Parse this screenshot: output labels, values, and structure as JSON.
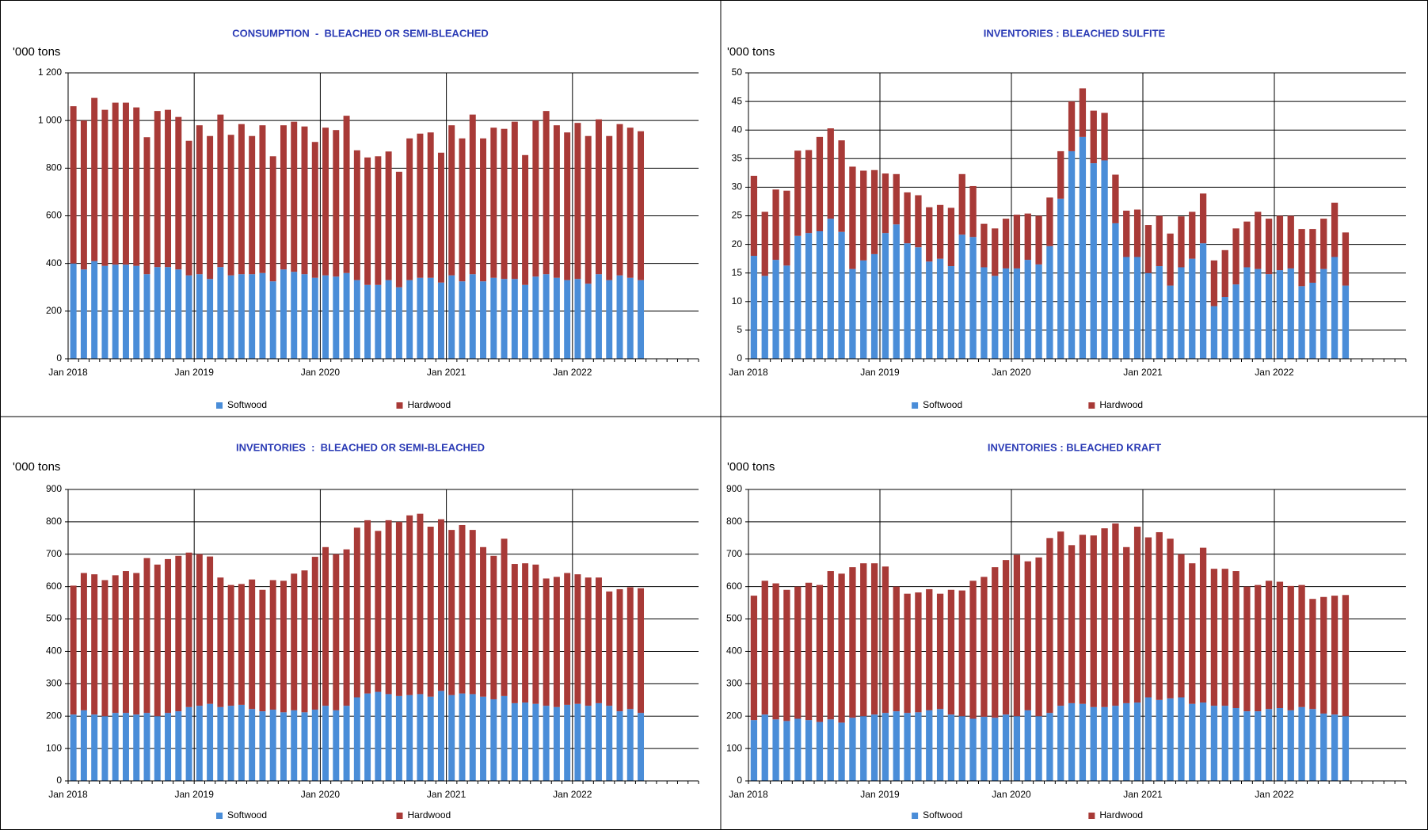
{
  "chart_data": [
    {
      "type": "bar",
      "stacked": true,
      "title": "CONSUMPTION  -  BLEACHED OR SEMI-BLEACHED",
      "y_label": "'000 tons",
      "categories": [
        "Jan 2018",
        null,
        null,
        null,
        null,
        null,
        null,
        null,
        null,
        null,
        null,
        null,
        "Jan 2019",
        null,
        null,
        null,
        null,
        null,
        null,
        null,
        null,
        null,
        null,
        null,
        "Jan 2020",
        null,
        null,
        null,
        null,
        null,
        null,
        null,
        null,
        null,
        null,
        null,
        "Jan 2021",
        null,
        null,
        null,
        null,
        null,
        null,
        null,
        null,
        null,
        null,
        null,
        "Jan 2022",
        null,
        null,
        null,
        null,
        null,
        null,
        null,
        null,
        null,
        null,
        null
      ],
      "series": [
        {
          "name": "Softwood",
          "color": "#4a8dd8",
          "values": [
            400,
            375,
            410,
            390,
            395,
            395,
            390,
            355,
            385,
            385,
            375,
            350,
            355,
            335,
            385,
            350,
            355,
            355,
            360,
            325,
            375,
            365,
            355,
            340,
            350,
            345,
            360,
            330,
            310,
            310,
            330,
            300,
            330,
            340,
            340,
            320,
            350,
            325,
            355,
            325,
            340,
            335,
            335,
            310,
            345,
            355,
            340,
            330,
            335,
            315,
            355,
            330,
            350,
            340,
            330,
            null,
            null,
            null,
            null,
            null
          ]
        },
        {
          "name": "Hardwood",
          "color": "#a83a37",
          "values": [
            660,
            625,
            685,
            655,
            680,
            680,
            665,
            575,
            655,
            660,
            640,
            565,
            625,
            600,
            640,
            590,
            630,
            580,
            620,
            525,
            605,
            630,
            620,
            570,
            620,
            615,
            660,
            545,
            535,
            540,
            540,
            485,
            595,
            605,
            610,
            545,
            630,
            600,
            670,
            600,
            630,
            630,
            660,
            545,
            655,
            685,
            640,
            620,
            655,
            620,
            650,
            605,
            635,
            630,
            625,
            null,
            null,
            null,
            null,
            null
          ]
        }
      ],
      "ylim": [
        0,
        1200
      ],
      "yticks": [
        0,
        200,
        400,
        600,
        800,
        {
          "value": 1000,
          "label": "1 000"
        },
        {
          "value": 1200,
          "label": "1 200"
        }
      ],
      "grid": true,
      "legend": "bottom"
    },
    {
      "type": "bar",
      "stacked": true,
      "title": "INVENTORIES : BLEACHED SULFITE",
      "y_label": "'000 tons",
      "categories": [
        "Jan 2018",
        null,
        null,
        null,
        null,
        null,
        null,
        null,
        null,
        null,
        null,
        null,
        "Jan 2019",
        null,
        null,
        null,
        null,
        null,
        null,
        null,
        null,
        null,
        null,
        null,
        "Jan 2020",
        null,
        null,
        null,
        null,
        null,
        null,
        null,
        null,
        null,
        null,
        null,
        "Jan 2021",
        null,
        null,
        null,
        null,
        null,
        null,
        null,
        null,
        null,
        null,
        null,
        "Jan 2022",
        null,
        null,
        null,
        null,
        null,
        null,
        null,
        null,
        null,
        null,
        null
      ],
      "series": [
        {
          "name": "Softwood",
          "color": "#4a8dd8",
          "values": [
            18,
            14.5,
            17.3,
            16.3,
            21.5,
            22,
            22.3,
            24.5,
            22.2,
            15.7,
            17.2,
            18.3,
            22,
            23.5,
            20.2,
            19.5,
            17,
            17.5,
            16.2,
            21.7,
            21.3,
            16,
            14.5,
            15.8,
            15.8,
            17.3,
            16.5,
            19.7,
            28,
            36.3,
            38.8,
            34.2,
            34.7,
            23.7,
            17.8,
            17.8,
            15,
            16.2,
            12.8,
            16,
            17.5,
            20.2,
            9.2,
            10.8,
            13,
            16,
            15.7,
            14.8,
            15.5,
            15.8,
            12.7,
            13.3,
            15.7,
            17.8,
            12.8,
            null,
            null,
            null,
            null,
            null
          ]
        },
        {
          "name": "Hardwood",
          "color": "#a83a37",
          "values": [
            14,
            11.2,
            12.3,
            13.1,
            14.9,
            14.5,
            16.5,
            15.8,
            16,
            17.9,
            15.7,
            14.7,
            10.4,
            8.8,
            8.9,
            9.1,
            9.5,
            9.4,
            10.2,
            10.6,
            8.9,
            7.6,
            8.3,
            8.7,
            9.4,
            8.1,
            8.5,
            8.5,
            8.3,
            8.7,
            8.5,
            9.2,
            8.3,
            8.5,
            8.1,
            8.3,
            8.4,
            8.8,
            9.1,
            8.9,
            8.2,
            8.7,
            8,
            8.2,
            9.8,
            8,
            10,
            9.7,
            9.5,
            9.2,
            10,
            9.4,
            8.8,
            9.5,
            9.3,
            null,
            null,
            null,
            null,
            null
          ]
        }
      ],
      "ylim": [
        0,
        50
      ],
      "yticks": [
        0,
        5,
        10,
        15,
        20,
        25,
        30,
        35,
        40,
        45,
        50
      ],
      "grid": true,
      "legend": "bottom"
    },
    {
      "type": "bar",
      "stacked": true,
      "title": "INVENTORIES  :  BLEACHED OR SEMI-BLEACHED",
      "y_label": "'000 tons",
      "categories": [
        "Jan 2018",
        null,
        null,
        null,
        null,
        null,
        null,
        null,
        null,
        null,
        null,
        null,
        "Jan 2019",
        null,
        null,
        null,
        null,
        null,
        null,
        null,
        null,
        null,
        null,
        null,
        "Jan 2020",
        null,
        null,
        null,
        null,
        null,
        null,
        null,
        null,
        null,
        null,
        null,
        "Jan 2021",
        null,
        null,
        null,
        null,
        null,
        null,
        null,
        null,
        null,
        null,
        null,
        "Jan 2022",
        null,
        null,
        null,
        null,
        null,
        null,
        null,
        null,
        null,
        null,
        null
      ],
      "series": [
        {
          "name": "Softwood",
          "color": "#4a8dd8",
          "values": [
            205,
            218,
            205,
            200,
            210,
            210,
            205,
            210,
            200,
            210,
            215,
            228,
            232,
            238,
            228,
            232,
            235,
            222,
            215,
            220,
            212,
            218,
            212,
            220,
            232,
            218,
            232,
            258,
            270,
            275,
            268,
            262,
            265,
            268,
            260,
            278,
            265,
            270,
            268,
            260,
            252,
            262,
            240,
            242,
            238,
            232,
            228,
            235,
            238,
            232,
            240,
            232,
            215,
            222,
            210,
            null,
            null,
            null,
            null,
            null
          ]
        },
        {
          "name": "Hardwood",
          "color": "#a83a37",
          "values": [
            398,
            424,
            433,
            420,
            425,
            438,
            437,
            478,
            468,
            475,
            480,
            477,
            468,
            455,
            400,
            373,
            373,
            400,
            375,
            400,
            406,
            422,
            438,
            472,
            490,
            482,
            483,
            524,
            535,
            497,
            537,
            538,
            555,
            557,
            525,
            530,
            510,
            520,
            507,
            462,
            443,
            486,
            430,
            430,
            430,
            393,
            402,
            407,
            400,
            396,
            388,
            353,
            377,
            376,
            385,
            null,
            null,
            null,
            null,
            null
          ]
        }
      ],
      "ylim": [
        0,
        900
      ],
      "yticks": [
        0,
        100,
        200,
        300,
        400,
        500,
        600,
        700,
        800,
        900
      ],
      "grid": true,
      "legend": "bottom"
    },
    {
      "type": "bar",
      "stacked": true,
      "title": "INVENTORIES : BLEACHED KRAFT",
      "y_label": "'000 tons",
      "categories": [
        "Jan 2018",
        null,
        null,
        null,
        null,
        null,
        null,
        null,
        null,
        null,
        null,
        null,
        "Jan 2019",
        null,
        null,
        null,
        null,
        null,
        null,
        null,
        null,
        null,
        null,
        null,
        "Jan 2020",
        null,
        null,
        null,
        null,
        null,
        null,
        null,
        null,
        null,
        null,
        null,
        "Jan 2021",
        null,
        null,
        null,
        null,
        null,
        null,
        null,
        null,
        null,
        null,
        null,
        "Jan 2022",
        null,
        null,
        null,
        null,
        null,
        null,
        null,
        null,
        null,
        null,
        null
      ],
      "series": [
        {
          "name": "Softwood",
          "color": "#4a8dd8",
          "values": [
            188,
            205,
            190,
            185,
            192,
            188,
            182,
            190,
            180,
            195,
            200,
            205,
            210,
            215,
            210,
            212,
            218,
            222,
            205,
            200,
            192,
            198,
            195,
            205,
            200,
            218,
            200,
            210,
            232,
            240,
            238,
            228,
            228,
            232,
            240,
            242,
            258,
            250,
            255,
            258,
            238,
            242,
            232,
            232,
            225,
            215,
            215,
            222,
            225,
            218,
            228,
            222,
            208,
            205,
            200,
            null,
            null,
            null,
            null,
            null
          ]
        },
        {
          "name": "Hardwood",
          "color": "#a83a37",
          "values": [
            384,
            413,
            420,
            405,
            408,
            424,
            423,
            458,
            460,
            465,
            472,
            467,
            452,
            385,
            368,
            370,
            374,
            356,
            385,
            388,
            426,
            432,
            465,
            477,
            498,
            460,
            490,
            540,
            538,
            488,
            522,
            530,
            552,
            563,
            482,
            543,
            494,
            518,
            493,
            442,
            434,
            478,
            423,
            423,
            423,
            385,
            390,
            396,
            390,
            384,
            377,
            340,
            360,
            367,
            374,
            null,
            null,
            null,
            null,
            null
          ]
        }
      ],
      "ylim": [
        0,
        900
      ],
      "yticks": [
        0,
        100,
        200,
        300,
        400,
        500,
        600,
        700,
        800,
        900
      ],
      "grid": true,
      "legend": "bottom"
    }
  ]
}
